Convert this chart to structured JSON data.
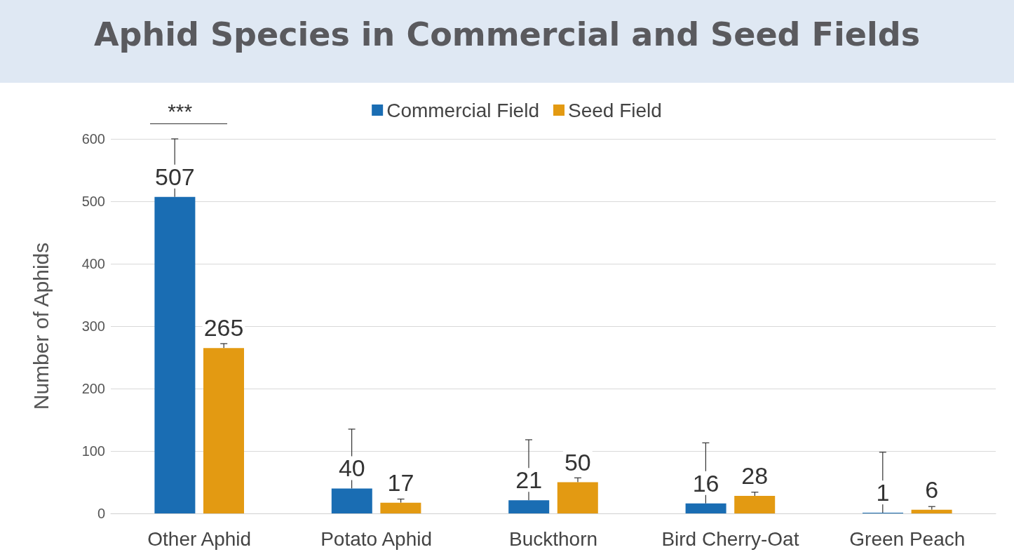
{
  "chart_data": {
    "type": "bar",
    "title": "Aphid Species in Commercial and Seed Fields",
    "ylabel": "Number of Aphids",
    "categories": [
      "Other Aphid",
      "Potato Aphid",
      "Buckthorn",
      "Bird Cherry-Oat",
      "Green Peach"
    ],
    "series": [
      {
        "name": "Commercial Field",
        "color": "#1a6db3",
        "values": [
          507,
          40,
          21,
          16,
          1
        ],
        "errors": [
          [
            507,
            600
          ],
          [
            40,
            135
          ],
          [
            21,
            118
          ],
          [
            16,
            113
          ],
          [
            1,
            98
          ]
        ]
      },
      {
        "name": "Seed Field",
        "color": "#e39a12",
        "values": [
          265,
          17,
          50,
          28,
          6
        ],
        "errors": [
          [
            265,
            272
          ],
          [
            17,
            23
          ],
          [
            50,
            57
          ],
          [
            28,
            34
          ],
          [
            6,
            11
          ]
        ]
      }
    ],
    "ylim": [
      0,
      600
    ],
    "yticks": [
      0,
      100,
      200,
      300,
      400,
      500,
      600
    ],
    "grid": "y",
    "legend": "top",
    "data_labels": true,
    "annotations": [
      "***"
    ]
  }
}
